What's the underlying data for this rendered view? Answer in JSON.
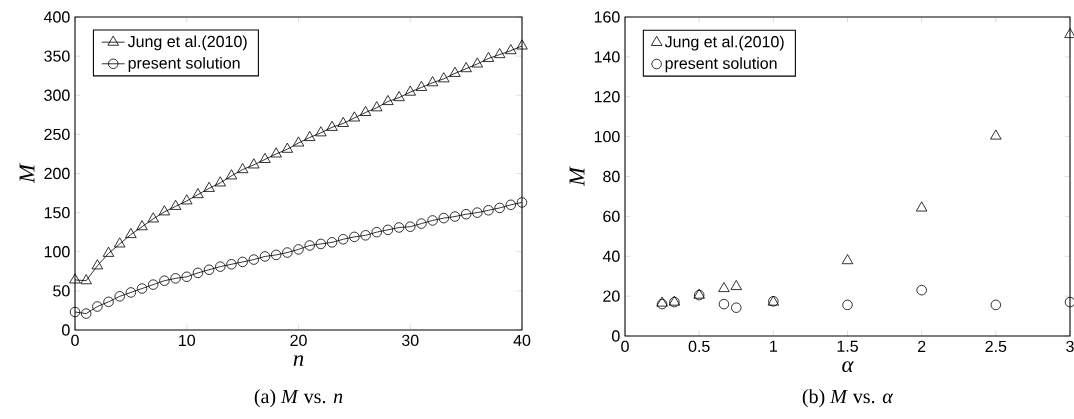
{
  "chart_data": [
    {
      "type": "line",
      "xlabel": "n",
      "ylabel": "M",
      "annotations": [
        "(a) *M* vs. *n*"
      ],
      "x": [
        0,
        1,
        2,
        3,
        4,
        5,
        6,
        7,
        8,
        9,
        10,
        11,
        12,
        13,
        14,
        15,
        16,
        17,
        18,
        19,
        20,
        21,
        22,
        23,
        24,
        25,
        26,
        27,
        28,
        29,
        30,
        31,
        32,
        33,
        34,
        35,
        36,
        37,
        38,
        39,
        40
      ],
      "series": [
        {
          "name": "Jung et al.(2010)",
          "color": "#000000",
          "marker": "triangle",
          "values": [
            64,
            63,
            82,
            98,
            110,
            122,
            132,
            142,
            151,
            158,
            165,
            173,
            181,
            188,
            197,
            205,
            211,
            218,
            225,
            231,
            239,
            246,
            252,
            259,
            264,
            271,
            278,
            284,
            292,
            297,
            304,
            310,
            316,
            321,
            328,
            334,
            340,
            347,
            352,
            357,
            363
          ]
        },
        {
          "name": "present solution",
          "color": "#000000",
          "marker": "circle",
          "values": [
            23,
            21,
            30,
            36,
            43,
            48,
            53,
            58,
            63,
            66,
            68,
            73,
            77,
            81,
            84,
            87,
            90,
            94,
            96,
            99,
            103,
            108,
            110,
            112,
            116,
            119,
            121,
            125,
            128,
            131,
            132,
            136,
            140,
            143,
            145,
            148,
            150,
            153,
            156,
            160,
            163
          ]
        }
      ],
      "xlim": [
        0,
        40
      ],
      "ylim": [
        0,
        400
      ],
      "xticks": [
        0,
        10,
        20,
        30,
        40
      ],
      "yticks": [
        0,
        50,
        100,
        150,
        200,
        250,
        300,
        350,
        400
      ],
      "legend": "top left",
      "line_style": "solid"
    },
    {
      "type": "scatter",
      "xlabel": "α",
      "ylabel": "M",
      "annotations": [
        "(b) *M* vs. *α*"
      ],
      "x": [
        0.25,
        0.333,
        0.5,
        0.667,
        0.75,
        1,
        1.5,
        2,
        2.5,
        3
      ],
      "series": [
        {
          "name": "Jung et al.(2010)",
          "color": "#000000",
          "marker": "triangle",
          "values": [
            16.5,
            17,
            20.5,
            23.8,
            24.8,
            17,
            37.8,
            64.2,
            100.3,
            151.2
          ]
        },
        {
          "name": "present solution",
          "color": "#000000",
          "marker": "circle",
          "values": [
            16,
            17,
            20.5,
            16,
            14.2,
            17.4,
            15.6,
            23,
            15.6,
            17
          ]
        }
      ],
      "xlim": [
        0,
        3
      ],
      "ylim": [
        0,
        160
      ],
      "xticks": [
        0,
        0.5,
        1,
        1.5,
        2,
        2.5,
        3
      ],
      "yticks": [
        0,
        20,
        40,
        60,
        80,
        100,
        120,
        140,
        160
      ],
      "legend": "top left"
    }
  ]
}
